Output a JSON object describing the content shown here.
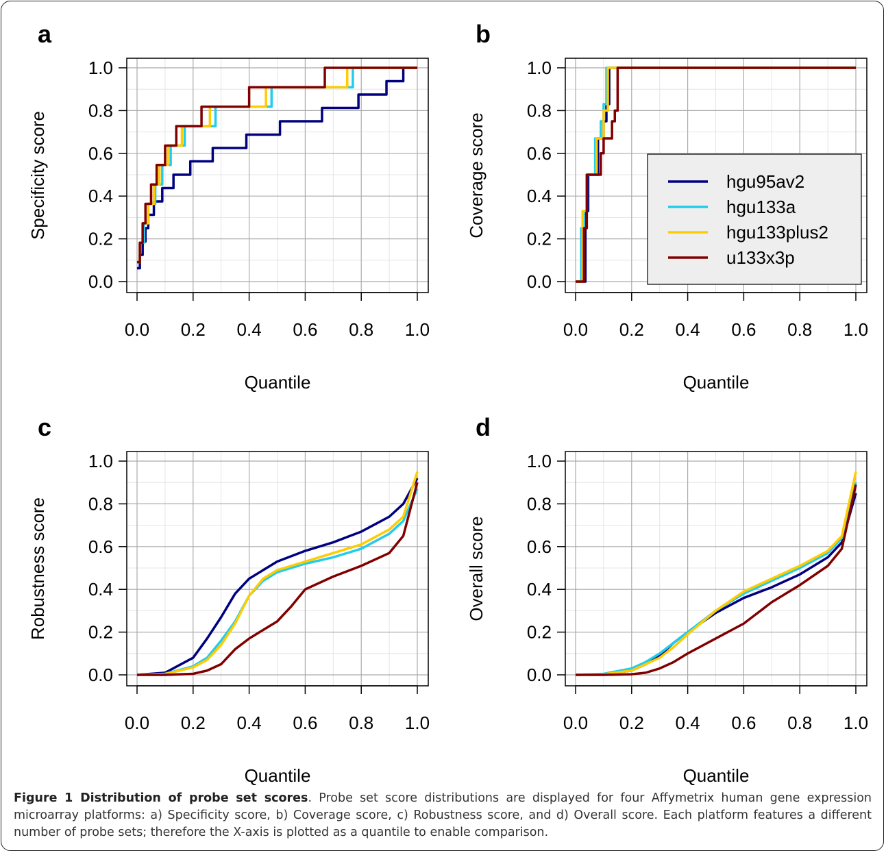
{
  "chart_data": [
    {
      "type": "line",
      "label": "a",
      "step": "post",
      "xlabel": "Quantile",
      "ylabel": "Specificity score",
      "xlim": [
        0,
        1
      ],
      "ylim": [
        0,
        1
      ],
      "grid": true,
      "xticks": [
        {
          "value": 0,
          "label": "0.0"
        },
        0.2,
        0.4,
        0.6,
        0.8,
        {
          "value": 1,
          "label": "1.0"
        }
      ],
      "yticks": [
        {
          "value": 0,
          "label": "0.0"
        },
        0.2,
        0.4,
        0.6,
        0.8,
        {
          "value": 1,
          "label": "1.0"
        }
      ],
      "series": [
        {
          "color": "#000080",
          "x": [
            0,
            0.01,
            0.02,
            0.03,
            0.04,
            0.06,
            0.09,
            0.13,
            0.19,
            0.27,
            0.39,
            0.51,
            0.66,
            0.79,
            0.89,
            0.95,
            1.0
          ],
          "values": [
            0.0625,
            0.125,
            0.1875,
            0.25,
            0.3125,
            0.375,
            0.4375,
            0.5,
            0.5625,
            0.625,
            0.6875,
            0.75,
            0.8125,
            0.875,
            0.9375,
            1.0,
            1.0
          ]
        },
        {
          "color": "#22ccee",
          "x": [
            0,
            0.01,
            0.025,
            0.04,
            0.065,
            0.09,
            0.12,
            0.17,
            0.28,
            0.48,
            0.77,
            1.0
          ],
          "values": [
            0.0909,
            0.1818,
            0.2727,
            0.3636,
            0.4545,
            0.5455,
            0.6364,
            0.7273,
            0.8182,
            0.9091,
            1.0,
            1.0
          ]
        },
        {
          "color": "#ffcc00",
          "x": [
            0,
            0.01,
            0.02,
            0.04,
            0.06,
            0.08,
            0.11,
            0.16,
            0.26,
            0.46,
            0.75,
            1.0
          ],
          "values": [
            0.0909,
            0.1818,
            0.2727,
            0.3636,
            0.4545,
            0.5455,
            0.6364,
            0.7273,
            0.8182,
            0.9091,
            1.0,
            1.0
          ]
        },
        {
          "color": "#800000",
          "x": [
            0,
            0.01,
            0.02,
            0.03,
            0.05,
            0.07,
            0.1,
            0.14,
            0.23,
            0.4,
            0.67,
            1.0
          ],
          "values": [
            0.0909,
            0.1818,
            0.2727,
            0.3636,
            0.4545,
            0.5455,
            0.6364,
            0.7273,
            0.8182,
            0.9091,
            1.0,
            1.0
          ]
        }
      ]
    },
    {
      "type": "line",
      "label": "b",
      "step": "post",
      "xlabel": "Quantile",
      "ylabel": "Coverage score",
      "xlim": [
        0,
        1
      ],
      "ylim": [
        0,
        1
      ],
      "grid": true,
      "legend": "right",
      "xticks": [
        {
          "value": 0,
          "label": "0.0"
        },
        0.2,
        0.4,
        0.6,
        0.8,
        {
          "value": 1,
          "label": "1.0"
        }
      ],
      "yticks": [
        {
          "value": 0,
          "label": "0.0"
        },
        0.2,
        0.4,
        0.6,
        0.8,
        {
          "value": 1,
          "label": "1.0"
        }
      ],
      "series": [
        {
          "name": "hgu95av2",
          "color": "#000080",
          "x": [
            0,
            0.035,
            0.045,
            0.08,
            0.1,
            0.11,
            0.12,
            1.0
          ],
          "values": [
            0,
            0.33,
            0.5,
            0.67,
            0.75,
            0.83,
            1.0,
            1.0
          ]
        },
        {
          "name": "hgu133a",
          "color": "#22ccee",
          "x": [
            0,
            0.02,
            0.03,
            0.04,
            0.07,
            0.09,
            0.1,
            0.11,
            1.0
          ],
          "values": [
            0,
            0.25,
            0.33,
            0.5,
            0.67,
            0.75,
            0.83,
            1.0,
            1.0
          ]
        },
        {
          "name": "hgu133plus2",
          "color": "#ffcc00",
          "x": [
            0,
            0.025,
            0.04,
            0.075,
            0.1,
            0.115,
            1.0
          ],
          "values": [
            0,
            0.33,
            0.5,
            0.67,
            0.8,
            1.0,
            1.0
          ]
        },
        {
          "name": "u133x3p",
          "color": "#800000",
          "x": [
            0,
            0.03,
            0.04,
            0.09,
            0.1,
            0.13,
            0.14,
            0.15,
            1.0
          ],
          "values": [
            0,
            0.25,
            0.5,
            0.6,
            0.67,
            0.75,
            0.8,
            1.0,
            1.0
          ]
        }
      ]
    },
    {
      "type": "line",
      "label": "c",
      "xlabel": "Quantile",
      "ylabel": "Robustness score",
      "xlim": [
        0,
        1
      ],
      "ylim": [
        0,
        1
      ],
      "grid": true,
      "xticks": [
        {
          "value": 0,
          "label": "0.0"
        },
        0.2,
        0.4,
        0.6,
        0.8,
        {
          "value": 1,
          "label": "1.0"
        }
      ],
      "yticks": [
        {
          "value": 0,
          "label": "0.0"
        },
        0.2,
        0.4,
        0.6,
        0.8,
        {
          "value": 1,
          "label": "1.0"
        }
      ],
      "series": [
        {
          "color": "#000080",
          "x": [
            0,
            0.1,
            0.2,
            0.25,
            0.3,
            0.35,
            0.4,
            0.5,
            0.6,
            0.7,
            0.8,
            0.9,
            0.95,
            1.0
          ],
          "values": [
            0,
            0.01,
            0.08,
            0.17,
            0.27,
            0.38,
            0.45,
            0.53,
            0.58,
            0.62,
            0.67,
            0.74,
            0.8,
            0.92
          ]
        },
        {
          "color": "#22ccee",
          "x": [
            0,
            0.1,
            0.2,
            0.25,
            0.3,
            0.35,
            0.4,
            0.45,
            0.5,
            0.6,
            0.7,
            0.8,
            0.9,
            0.95,
            1.0
          ],
          "values": [
            0,
            0.005,
            0.04,
            0.08,
            0.16,
            0.25,
            0.37,
            0.44,
            0.48,
            0.52,
            0.55,
            0.59,
            0.66,
            0.72,
            0.87
          ]
        },
        {
          "color": "#ffcc00",
          "x": [
            0,
            0.1,
            0.2,
            0.25,
            0.3,
            0.35,
            0.4,
            0.45,
            0.5,
            0.6,
            0.7,
            0.8,
            0.9,
            0.95,
            1.0
          ],
          "values": [
            0,
            0.004,
            0.035,
            0.07,
            0.14,
            0.24,
            0.37,
            0.45,
            0.49,
            0.53,
            0.57,
            0.61,
            0.68,
            0.74,
            0.95
          ]
        },
        {
          "color": "#800000",
          "x": [
            0,
            0.1,
            0.2,
            0.25,
            0.3,
            0.35,
            0.4,
            0.5,
            0.55,
            0.6,
            0.7,
            0.8,
            0.9,
            0.95,
            1.0
          ],
          "values": [
            0,
            0,
            0.005,
            0.02,
            0.05,
            0.12,
            0.17,
            0.25,
            0.32,
            0.4,
            0.46,
            0.51,
            0.57,
            0.65,
            0.9
          ]
        }
      ]
    },
    {
      "type": "line",
      "label": "d",
      "xlabel": "Quantile",
      "ylabel": "Overall score",
      "xlim": [
        0,
        1
      ],
      "ylim": [
        0,
        1
      ],
      "grid": true,
      "xticks": [
        {
          "value": 0,
          "label": "0.0"
        },
        0.2,
        0.4,
        0.6,
        0.8,
        {
          "value": 1,
          "label": "1.0"
        }
      ],
      "yticks": [
        {
          "value": 0,
          "label": "0.0"
        },
        0.2,
        0.4,
        0.6,
        0.8,
        {
          "value": 1,
          "label": "1.0"
        }
      ],
      "series": [
        {
          "color": "#000080",
          "x": [
            0,
            0.1,
            0.2,
            0.25,
            0.3,
            0.35,
            0.4,
            0.5,
            0.6,
            0.7,
            0.8,
            0.9,
            0.95,
            1.0
          ],
          "values": [
            0,
            0.003,
            0.02,
            0.05,
            0.09,
            0.15,
            0.2,
            0.29,
            0.36,
            0.41,
            0.47,
            0.55,
            0.62,
            0.85
          ]
        },
        {
          "color": "#22ccee",
          "x": [
            0,
            0.1,
            0.2,
            0.25,
            0.3,
            0.35,
            0.4,
            0.5,
            0.6,
            0.7,
            0.8,
            0.9,
            0.95,
            1.0
          ],
          "values": [
            0,
            0.005,
            0.03,
            0.06,
            0.1,
            0.15,
            0.2,
            0.3,
            0.38,
            0.44,
            0.5,
            0.57,
            0.64,
            0.9
          ]
        },
        {
          "color": "#ffcc00",
          "x": [
            0,
            0.1,
            0.2,
            0.3,
            0.35,
            0.4,
            0.5,
            0.6,
            0.7,
            0.8,
            0.9,
            0.95,
            1.0
          ],
          "values": [
            0,
            0.003,
            0.02,
            0.08,
            0.13,
            0.19,
            0.3,
            0.39,
            0.45,
            0.51,
            0.58,
            0.65,
            0.95
          ]
        },
        {
          "color": "#800000",
          "x": [
            0,
            0.1,
            0.2,
            0.25,
            0.3,
            0.35,
            0.4,
            0.5,
            0.6,
            0.7,
            0.8,
            0.9,
            0.95,
            1.0
          ],
          "values": [
            0,
            0,
            0.003,
            0.01,
            0.03,
            0.06,
            0.1,
            0.17,
            0.24,
            0.34,
            0.42,
            0.51,
            0.59,
            0.89
          ]
        }
      ]
    }
  ],
  "caption": {
    "title": "Figure 1 Distribution of probe set scores",
    "text": ". Probe set score distributions are displayed for four Affymetrix human gene expression microarray platforms: a) Specificity score, b) Coverage score, c) Robustness score, and d) Overall score. Each platform features a different number of probe sets; therefore the X-axis is plotted as a quantile to enable comparison."
  }
}
